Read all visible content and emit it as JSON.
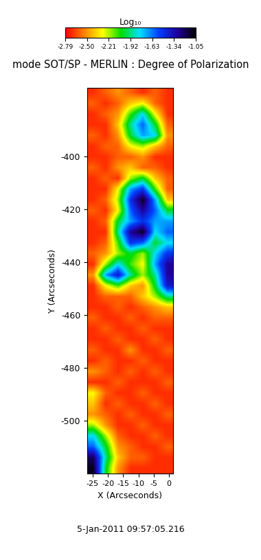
{
  "chart_data": {
    "type": "heatmap",
    "title": "mode SOT/SP - MERLIN : Degree of Polarization",
    "annotation": "5-Jan-2011 09:57:05.216",
    "x_label": "X (Arcseconds)",
    "y_label": "Y (Arcseconds)",
    "xlim": [
      -26.8,
      1.3
    ],
    "ylim": [
      -520,
      -374
    ],
    "xticks": [
      -25,
      -20,
      -15,
      -10,
      -5,
      0
    ],
    "yticks": [
      -400,
      -420,
      -440,
      -460,
      -480,
      -500
    ],
    "colorbar": {
      "label": "Log₁₀",
      "range": [
        -2.79,
        -1.05
      ],
      "ticks": [
        -2.79,
        {
          "value": -2.5,
          "label": "-2.50"
        },
        -2.21,
        -1.92,
        -1.63,
        -1.34,
        -1.05
      ]
    },
    "cells": [
      [
        -2.7,
        -2.6,
        -2.5,
        -2.6,
        -2.7,
        -2.6,
        -2.7
      ],
      [
        -2.6,
        -2.7,
        -2.6,
        -2.4,
        -2.3,
        -2.6,
        -2.7
      ],
      [
        -2.7,
        -2.6,
        -2.5,
        -2.1,
        -1.8,
        -2.3,
        -2.7
      ],
      [
        -2.7,
        -2.7,
        -2.4,
        -1.9,
        -1.6,
        -2.0,
        -2.6
      ],
      [
        -2.6,
        -2.7,
        -2.5,
        -2.0,
        -1.7,
        -1.8,
        -2.5
      ],
      [
        -2.7,
        -2.6,
        -2.6,
        -2.3,
        -2.2,
        -2.4,
        -2.6
      ],
      [
        -2.7,
        -2.7,
        -2.6,
        -2.6,
        -2.5,
        -2.7,
        -2.7
      ],
      [
        -2.6,
        -2.7,
        -2.5,
        -2.4,
        -2.6,
        -2.6,
        -2.7
      ],
      [
        -2.7,
        -2.6,
        -2.7,
        -2.2,
        -2.0,
        -2.4,
        -2.6
      ],
      [
        -2.7,
        -2.7,
        -2.3,
        -1.7,
        -1.5,
        -2.1,
        -2.6
      ],
      [
        -2.7,
        -2.6,
        -2.2,
        -1.5,
        -1.1,
        -1.7,
        -2.4
      ],
      [
        -2.6,
        -2.7,
        -2.3,
        -1.6,
        -1.3,
        -1.6,
        -2.0
      ],
      [
        -2.7,
        -2.6,
        -2.0,
        -1.7,
        -1.5,
        -1.7,
        -1.7
      ],
      [
        -2.7,
        -2.7,
        -1.9,
        -1.3,
        -1.1,
        -1.8,
        -1.6
      ],
      [
        -2.7,
        -2.6,
        -2.1,
        -1.5,
        -1.6,
        -2.0,
        -1.8
      ],
      [
        -2.6,
        -2.5,
        -2.2,
        -2.0,
        -2.2,
        -1.8,
        -1.5
      ],
      [
        -2.7,
        -2.2,
        -1.8,
        -2.1,
        -2.3,
        -1.7,
        -1.3
      ],
      [
        -2.5,
        -1.7,
        -1.4,
        -1.9,
        -2.2,
        -1.9,
        -1.3
      ],
      [
        -2.7,
        -2.3,
        -2.1,
        -2.4,
        -2.5,
        -2.0,
        -1.4
      ],
      [
        -2.7,
        -2.6,
        -2.6,
        -2.6,
        -2.4,
        -2.2,
        -1.9
      ],
      [
        -2.7,
        -2.7,
        -2.6,
        -2.7,
        -2.6,
        -2.5,
        -2.4
      ],
      [
        -2.6,
        -2.7,
        -2.7,
        -2.6,
        -2.7,
        -2.6,
        -2.6
      ],
      [
        -2.7,
        -2.6,
        -2.7,
        -2.7,
        -2.6,
        -2.7,
        -2.7
      ],
      [
        -2.7,
        -2.7,
        -2.6,
        -2.7,
        -2.7,
        -2.6,
        -2.7
      ],
      [
        -2.6,
        -2.7,
        -2.7,
        -2.5,
        -2.7,
        -2.7,
        -2.6
      ],
      [
        -2.7,
        -2.6,
        -2.7,
        -2.7,
        -2.6,
        -2.7,
        -2.7
      ],
      [
        -2.5,
        -2.6,
        -2.7,
        -2.6,
        -2.7,
        -2.6,
        -2.7
      ],
      [
        -2.7,
        -2.7,
        -2.6,
        -2.7,
        -2.7,
        -2.7,
        -2.6
      ],
      [
        -2.3,
        -2.6,
        -2.7,
        -2.7,
        -2.6,
        -2.7,
        -2.7
      ],
      [
        -2.4,
        -2.7,
        -2.6,
        -2.7,
        -2.7,
        -2.6,
        -2.7
      ],
      [
        -2.5,
        -2.6,
        -2.7,
        -2.6,
        -2.7,
        -2.7,
        -2.6
      ],
      [
        -2.2,
        -2.5,
        -2.7,
        -2.7,
        -2.6,
        -2.7,
        -2.7
      ],
      [
        -1.8,
        -2.2,
        -2.6,
        -2.7,
        -2.7,
        -2.6,
        -2.7
      ],
      [
        -1.6,
        -2.0,
        -2.5,
        -2.6,
        -2.7,
        -2.7,
        -2.6
      ],
      [
        -1.2,
        -1.9,
        -2.4,
        -2.6,
        -2.6,
        -2.7,
        -2.7
      ],
      [
        -1.1,
        -2.0,
        -2.5,
        -2.7,
        -2.7,
        -2.7,
        -2.7
      ]
    ]
  }
}
